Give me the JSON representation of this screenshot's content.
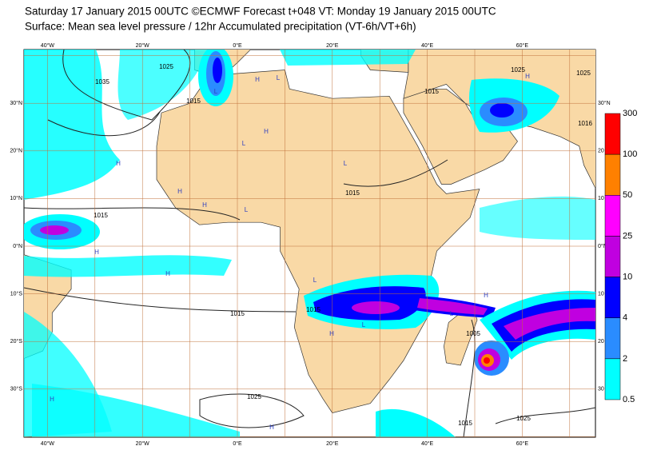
{
  "header": {
    "title": "Saturday 17 January 2015 00UTC ©ECMWF Forecast t+048 VT: Monday 19 January 2015 00UTC",
    "subtitle": "Surface: Mean sea level pressure / 12hr Accumulated precipitation (VT-6h/VT+6h)"
  },
  "map": {
    "top_lon_labels": [
      "40°W",
      "20°W",
      "0°E",
      "20°E",
      "40°E",
      "60°E"
    ],
    "bottom_lon_labels": [
      "40°W",
      "20°W",
      "0°E",
      "20°E",
      "40°E",
      "60°E"
    ],
    "left_lat_labels": [
      "30°N",
      "20°N",
      "10°N",
      "0°N",
      "10°S",
      "20°S",
      "30°S"
    ],
    "right_lat_labels": [
      "30°N",
      "20",
      "10",
      "0°N",
      "10",
      "20",
      "30"
    ],
    "isobar_labels": [
      "1035",
      "1025",
      "1015",
      "1015",
      "1015",
      "1015",
      "1015",
      "1015",
      "1025",
      "1025",
      "1016",
      "1005",
      "1025",
      "1015",
      "1025"
    ],
    "pressure_centres": [
      "H",
      "L",
      "H",
      "L",
      "H",
      "H",
      "L",
      "H",
      "L",
      "H",
      "H",
      "L",
      "H",
      "L",
      "H",
      "L",
      "H",
      "H",
      "L",
      "H"
    ]
  },
  "legend": {
    "labels": [
      "300",
      "100",
      "50",
      "25",
      "10",
      "4",
      "2",
      "0.5"
    ],
    "colors": [
      "#ff0000",
      "#ff8000",
      "#ff00ff",
      "#c000e0",
      "#0000ff",
      "#2a8cff",
      "#00ffff"
    ]
  }
}
